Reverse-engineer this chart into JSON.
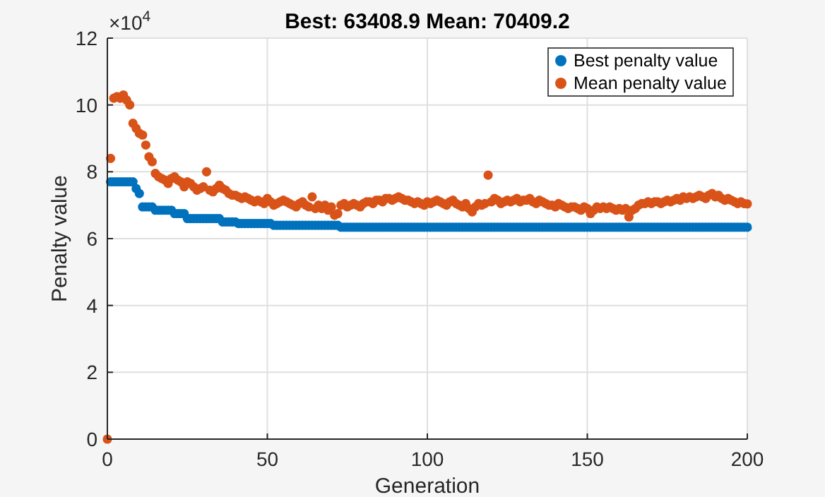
{
  "chart_data": {
    "type": "scatter",
    "title": "Best: 63408.9 Mean: 70409.2",
    "xlabel": "Generation",
    "ylabel": "Penalty value",
    "annotations": [
      "×10$^{4}$"
    ],
    "x": [
      0,
      1,
      2,
      3,
      4,
      5,
      6,
      7,
      8,
      9,
      10,
      11,
      12,
      13,
      14,
      15,
      16,
      17,
      18,
      19,
      20,
      21,
      22,
      23,
      24,
      25,
      26,
      27,
      28,
      29,
      30,
      31,
      32,
      33,
      34,
      35,
      36,
      37,
      38,
      39,
      40,
      41,
      42,
      43,
      44,
      45,
      46,
      47,
      48,
      49,
      50,
      51,
      52,
      53,
      54,
      55,
      56,
      57,
      58,
      59,
      60,
      61,
      62,
      63,
      64,
      65,
      66,
      67,
      68,
      69,
      70,
      71,
      72,
      73,
      74,
      75,
      76,
      77,
      78,
      79,
      80,
      81,
      82,
      83,
      84,
      85,
      86,
      87,
      88,
      89,
      90,
      91,
      92,
      93,
      94,
      95,
      96,
      97,
      98,
      99,
      100,
      101,
      102,
      103,
      104,
      105,
      106,
      107,
      108,
      109,
      110,
      111,
      112,
      113,
      114,
      115,
      116,
      117,
      118,
      119,
      120,
      121,
      122,
      123,
      124,
      125,
      126,
      127,
      128,
      129,
      130,
      131,
      132,
      133,
      134,
      135,
      136,
      137,
      138,
      139,
      140,
      141,
      142,
      143,
      144,
      145,
      146,
      147,
      148,
      149,
      150,
      151,
      152,
      153,
      154,
      155,
      156,
      157,
      158,
      159,
      160,
      161,
      162,
      163,
      164,
      165,
      166,
      167,
      168,
      169,
      170,
      171,
      172,
      173,
      174,
      175,
      176,
      177,
      178,
      179,
      180,
      181,
      182,
      183,
      184,
      185,
      186,
      187,
      188,
      189,
      190,
      191,
      192,
      193,
      194,
      195,
      196,
      197,
      198,
      199,
      200
    ],
    "series": [
      {
        "name": "Best penalty value",
        "color": "#0072bd",
        "values": [
          null,
          7.7,
          7.7,
          7.7,
          7.7,
          7.7,
          7.7,
          7.7,
          7.7,
          7.5,
          7.35,
          6.95,
          6.95,
          6.95,
          6.95,
          6.85,
          6.85,
          6.85,
          6.85,
          6.85,
          6.85,
          6.75,
          6.75,
          6.75,
          6.75,
          6.6,
          6.6,
          6.6,
          6.6,
          6.6,
          6.6,
          6.6,
          6.6,
          6.6,
          6.6,
          6.6,
          6.5,
          6.5,
          6.5,
          6.5,
          6.5,
          6.45,
          6.45,
          6.45,
          6.45,
          6.45,
          6.45,
          6.45,
          6.45,
          6.45,
          6.45,
          6.45,
          6.4,
          6.4,
          6.4,
          6.4,
          6.4,
          6.4,
          6.4,
          6.4,
          6.4,
          6.4,
          6.4,
          6.4,
          6.4,
          6.4,
          6.4,
          6.4,
          6.4,
          6.4,
          6.4,
          6.4,
          6.4,
          6.34,
          6.34,
          6.34,
          6.34,
          6.34,
          6.34,
          6.34,
          6.34,
          6.34,
          6.34,
          6.34,
          6.34,
          6.34,
          6.34,
          6.34,
          6.34,
          6.34,
          6.34,
          6.34,
          6.34,
          6.34,
          6.34,
          6.34,
          6.34,
          6.34,
          6.34,
          6.34,
          6.34,
          6.34,
          6.34,
          6.34,
          6.34,
          6.34,
          6.34,
          6.34,
          6.34,
          6.34,
          6.34,
          6.34,
          6.34,
          6.34,
          6.34,
          6.34,
          6.34,
          6.34,
          6.34,
          6.34,
          6.34,
          6.34,
          6.34,
          6.34,
          6.34,
          6.34,
          6.34,
          6.34,
          6.34,
          6.34,
          6.34,
          6.34,
          6.34,
          6.34,
          6.34,
          6.34,
          6.34,
          6.34,
          6.34,
          6.34,
          6.34,
          6.34,
          6.34,
          6.34,
          6.34,
          6.34,
          6.34,
          6.34,
          6.34,
          6.34,
          6.34,
          6.34,
          6.34,
          6.34,
          6.34,
          6.34,
          6.34,
          6.34,
          6.34,
          6.34,
          6.34,
          6.34,
          6.34,
          6.34,
          6.34,
          6.34,
          6.34,
          6.34,
          6.34,
          6.34,
          6.34,
          6.34,
          6.34,
          6.34,
          6.34,
          6.34,
          6.34,
          6.34,
          6.34,
          6.34,
          6.34,
          6.34,
          6.34,
          6.34,
          6.34,
          6.34,
          6.34,
          6.34,
          6.34,
          6.34,
          6.34,
          6.34,
          6.34,
          6.34,
          6.34,
          6.34,
          6.34,
          6.34,
          6.34,
          6.34,
          6.34
        ]
      },
      {
        "name": "Mean penalty value",
        "color": "#d95319",
        "values": [
          0,
          8.4,
          10.2,
          10.25,
          10.2,
          10.3,
          10.15,
          10.0,
          9.45,
          9.3,
          9.15,
          9.1,
          8.8,
          8.45,
          8.3,
          7.95,
          7.85,
          7.8,
          7.75,
          7.65,
          7.8,
          7.85,
          7.75,
          7.7,
          7.55,
          7.7,
          7.65,
          7.55,
          7.45,
          7.5,
          7.55,
          8.0,
          7.45,
          7.4,
          7.5,
          7.6,
          7.5,
          7.45,
          7.35,
          7.3,
          7.3,
          7.25,
          7.2,
          7.25,
          7.2,
          7.15,
          7.1,
          7.15,
          7.1,
          7.05,
          7.2,
          7.1,
          7.0,
          7.05,
          7.1,
          7.15,
          7.1,
          7.05,
          7.0,
          6.95,
          7.05,
          7.1,
          7.0,
          6.95,
          7.25,
          6.9,
          7.0,
          6.9,
          7.0,
          6.85,
          6.95,
          6.7,
          6.75,
          7.0,
          7.05,
          6.95,
          7.0,
          7.05,
          7.0,
          6.95,
          7.05,
          7.1,
          7.1,
          7.05,
          7.15,
          7.15,
          7.1,
          7.2,
          7.2,
          7.15,
          7.2,
          7.25,
          7.2,
          7.15,
          7.15,
          7.1,
          7.05,
          7.1,
          7.05,
          7.0,
          7.1,
          7.05,
          7.1,
          7.15,
          7.1,
          7.05,
          7.0,
          7.1,
          7.15,
          7.05,
          7.0,
          6.95,
          7.05,
          6.9,
          6.8,
          6.95,
          7.05,
          7.0,
          7.05,
          7.9,
          7.1,
          7.2,
          7.15,
          7.05,
          7.1,
          7.15,
          7.1,
          7.15,
          7.2,
          7.1,
          7.15,
          7.15,
          7.2,
          7.1,
          7.05,
          7.15,
          7.1,
          7.05,
          7.0,
          7.0,
          6.95,
          7.05,
          7.0,
          6.95,
          6.9,
          6.95,
          6.95,
          6.9,
          6.85,
          6.95,
          6.9,
          6.75,
          6.85,
          6.95,
          6.9,
          6.95,
          6.9,
          6.95,
          6.9,
          6.85,
          6.9,
          6.85,
          6.9,
          6.65,
          6.85,
          6.9,
          7.0,
          7.05,
          7.05,
          7.1,
          7.05,
          7.1,
          7.1,
          7.05,
          7.1,
          7.15,
          7.1,
          7.15,
          7.2,
          7.15,
          7.25,
          7.2,
          7.25,
          7.2,
          7.25,
          7.3,
          7.25,
          7.2,
          7.3,
          7.35,
          7.25,
          7.3,
          7.2,
          7.15,
          7.2,
          7.15,
          7.1,
          7.05,
          7.1,
          7.05,
          7.04
        ]
      }
    ],
    "xlim": [
      0,
      200
    ],
    "xticks": [
      0,
      50,
      100,
      150,
      200
    ],
    "ylim": [
      0,
      12
    ],
    "yticks": [
      0,
      2,
      4,
      6,
      8,
      10,
      12
    ],
    "grid": true,
    "legend": "top right",
    "marker": "circle"
  }
}
